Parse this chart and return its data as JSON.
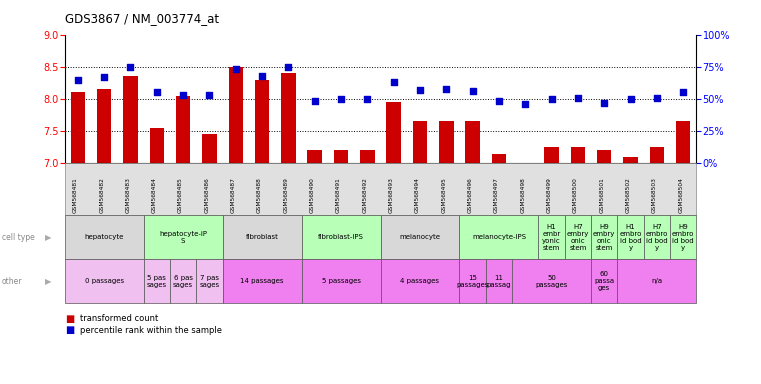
{
  "title": "GDS3867 / NM_003774_at",
  "gsm_labels": [
    "GSM568481",
    "GSM568482",
    "GSM568483",
    "GSM568484",
    "GSM568485",
    "GSM568486",
    "GSM568487",
    "GSM568488",
    "GSM568489",
    "GSM568490",
    "GSM568491",
    "GSM568492",
    "GSM568493",
    "GSM568494",
    "GSM568495",
    "GSM568496",
    "GSM568497",
    "GSM568498",
    "GSM568499",
    "GSM568500",
    "GSM568501",
    "GSM568502",
    "GSM568503",
    "GSM568504"
  ],
  "bar_values": [
    8.1,
    8.15,
    8.35,
    7.55,
    8.05,
    7.45,
    8.5,
    8.3,
    8.4,
    7.2,
    7.2,
    7.2,
    7.95,
    7.65,
    7.65,
    7.65,
    7.15,
    7.0,
    7.25,
    7.25,
    7.2,
    7.1,
    7.25,
    7.65
  ],
  "percentile_values": [
    65,
    67,
    75,
    55,
    53,
    53,
    73,
    68,
    75,
    48,
    50,
    50,
    63,
    57,
    58,
    56,
    48,
    46,
    50,
    51,
    47,
    50,
    51,
    55
  ],
  "ylim_left": [
    7,
    9
  ],
  "ylim_right": [
    0,
    100
  ],
  "yticks_left": [
    7,
    7.5,
    8,
    8.5,
    9
  ],
  "yticks_right": [
    0,
    25,
    50,
    75,
    100
  ],
  "bar_color": "#cc0000",
  "percentile_color": "#0000cc",
  "bar_bottom": 7,
  "cell_type_groups": [
    {
      "text": "hepatocyte",
      "start": 0,
      "end": 2,
      "color": "#d8d8d8"
    },
    {
      "text": "hepatocyte-iP\nS",
      "start": 3,
      "end": 5,
      "color": "#b8ffb8"
    },
    {
      "text": "fibroblast",
      "start": 6,
      "end": 8,
      "color": "#d8d8d8"
    },
    {
      "text": "fibroblast-IPS",
      "start": 9,
      "end": 11,
      "color": "#b8ffb8"
    },
    {
      "text": "melanocyte",
      "start": 12,
      "end": 14,
      "color": "#d8d8d8"
    },
    {
      "text": "melanocyte-IPS",
      "start": 15,
      "end": 17,
      "color": "#b8ffb8"
    },
    {
      "text": "H1\nembr\nyonic\nstem",
      "start": 18,
      "end": 18,
      "color": "#b8ffb8"
    },
    {
      "text": "H7\nembry\nonic\nstem",
      "start": 19,
      "end": 19,
      "color": "#b8ffb8"
    },
    {
      "text": "H9\nembry\nonic\nstem",
      "start": 20,
      "end": 20,
      "color": "#b8ffb8"
    },
    {
      "text": "H1\nembro\nid bod\ny",
      "start": 21,
      "end": 21,
      "color": "#b8ffb8"
    },
    {
      "text": "H7\nembro\nid bod\ny",
      "start": 22,
      "end": 22,
      "color": "#b8ffb8"
    },
    {
      "text": "H9\nembro\nid bod\ny",
      "start": 23,
      "end": 23,
      "color": "#b8ffb8"
    }
  ],
  "other_groups": [
    {
      "text": "0 passages",
      "start": 0,
      "end": 2,
      "color": "#f0c0f0"
    },
    {
      "text": "5 pas\nsages",
      "start": 3,
      "end": 3,
      "color": "#f0c0f0"
    },
    {
      "text": "6 pas\nsages",
      "start": 4,
      "end": 4,
      "color": "#f0c0f0"
    },
    {
      "text": "7 pas\nsages",
      "start": 5,
      "end": 5,
      "color": "#f0c0f0"
    },
    {
      "text": "14 passages",
      "start": 6,
      "end": 8,
      "color": "#f080f0"
    },
    {
      "text": "5 passages",
      "start": 9,
      "end": 11,
      "color": "#f080f0"
    },
    {
      "text": "4 passages",
      "start": 12,
      "end": 14,
      "color": "#f080f0"
    },
    {
      "text": "15\npassages",
      "start": 15,
      "end": 15,
      "color": "#f080f0"
    },
    {
      "text": "11\npassag",
      "start": 16,
      "end": 16,
      "color": "#f080f0"
    },
    {
      "text": "50\npassages",
      "start": 17,
      "end": 19,
      "color": "#f080f0"
    },
    {
      "text": "60\npassa\nges",
      "start": 20,
      "end": 20,
      "color": "#f080f0"
    },
    {
      "text": "n/a",
      "start": 21,
      "end": 23,
      "color": "#f080f0"
    }
  ],
  "gsm_bg_color": "#e0e0e0",
  "left_label_color": "#a0a0a0"
}
